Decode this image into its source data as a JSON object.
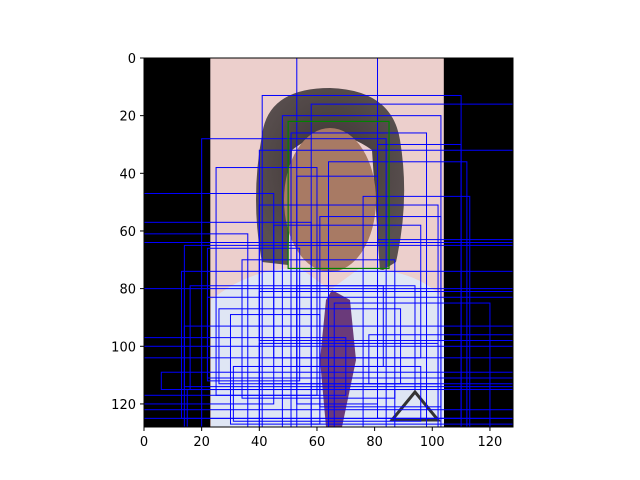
{
  "chart_data": {
    "type": "image",
    "title": "",
    "xlabel": "",
    "ylabel": "",
    "xlim": [
      0,
      128
    ],
    "ylim": [
      128,
      0
    ],
    "grid": false,
    "x_ticks": [
      0,
      20,
      40,
      60,
      80,
      100,
      120
    ],
    "y_ticks": [
      0,
      20,
      40,
      60,
      80,
      100,
      120
    ],
    "image_content": "face-photo",
    "photo_extent_x": [
      23,
      104
    ],
    "box_color": "#0000ff",
    "highlight_color": "#008000",
    "highlight_box": [
      50,
      22,
      85,
      73
    ],
    "boxes": [
      [
        53,
        0,
        128,
        128
      ],
      [
        81,
        0,
        128,
        63
      ],
      [
        41,
        13,
        110,
        128
      ],
      [
        58,
        16,
        128,
        127
      ],
      [
        48,
        20,
        103,
        128
      ],
      [
        51,
        26,
        98,
        128
      ],
      [
        20,
        28,
        84,
        128
      ],
      [
        81,
        30,
        110,
        125
      ],
      [
        40,
        32,
        128,
        128
      ],
      [
        64,
        36,
        112,
        128
      ],
      [
        25,
        38,
        60,
        117
      ],
      [
        53,
        41,
        81,
        120
      ],
      [
        76,
        48,
        113,
        128
      ],
      [
        40,
        51,
        102,
        113
      ],
      [
        61,
        55,
        103,
        121
      ],
      [
        45,
        58,
        96,
        104
      ],
      [
        0,
        47,
        45,
        120
      ],
      [
        0,
        57,
        58,
        128
      ],
      [
        0,
        61,
        36,
        128
      ],
      [
        14,
        65,
        128,
        114
      ],
      [
        0,
        64,
        128,
        100
      ],
      [
        22,
        66,
        54,
        112
      ],
      [
        34,
        70,
        87,
        118
      ],
      [
        13,
        74,
        128,
        125
      ],
      [
        16,
        79,
        94,
        115
      ],
      [
        0,
        80,
        128,
        125
      ],
      [
        53,
        79,
        83,
        107
      ],
      [
        40,
        81,
        128,
        98
      ],
      [
        22,
        83,
        128,
        111
      ],
      [
        66,
        85,
        120,
        128
      ],
      [
        26,
        87,
        89,
        113
      ],
      [
        30,
        89,
        61,
        127
      ],
      [
        14,
        93,
        128,
        128
      ],
      [
        78,
        96,
        128,
        113
      ],
      [
        0,
        97,
        70,
        117
      ],
      [
        40,
        99,
        102,
        128
      ],
      [
        0,
        104,
        128,
        122
      ],
      [
        31,
        107,
        96,
        126
      ],
      [
        6,
        109,
        128,
        115
      ],
      [
        15,
        115,
        87,
        128
      ]
    ]
  }
}
